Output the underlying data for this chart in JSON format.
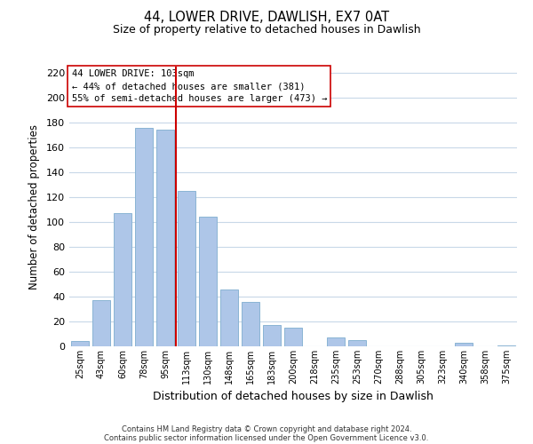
{
  "title": "44, LOWER DRIVE, DAWLISH, EX7 0AT",
  "subtitle": "Size of property relative to detached houses in Dawlish",
  "xlabel": "Distribution of detached houses by size in Dawlish",
  "ylabel": "Number of detached properties",
  "bar_labels": [
    "25sqm",
    "43sqm",
    "60sqm",
    "78sqm",
    "95sqm",
    "113sqm",
    "130sqm",
    "148sqm",
    "165sqm",
    "183sqm",
    "200sqm",
    "218sqm",
    "235sqm",
    "253sqm",
    "270sqm",
    "288sqm",
    "305sqm",
    "323sqm",
    "340sqm",
    "358sqm",
    "375sqm"
  ],
  "bar_values": [
    4,
    37,
    107,
    176,
    174,
    125,
    104,
    46,
    36,
    17,
    15,
    0,
    7,
    5,
    0,
    0,
    0,
    0,
    3,
    0,
    1
  ],
  "bar_color": "#aec6e8",
  "bar_edge_color": "#8ab4d4",
  "vline_color": "#cc0000",
  "vline_x_idx": 4.5,
  "ylim": [
    0,
    225
  ],
  "yticks": [
    0,
    20,
    40,
    60,
    80,
    100,
    120,
    140,
    160,
    180,
    200,
    220
  ],
  "annotation_title": "44 LOWER DRIVE: 103sqm",
  "annotation_line1": "← 44% of detached houses are smaller (381)",
  "annotation_line2": "55% of semi-detached houses are larger (473) →",
  "footer1": "Contains HM Land Registry data © Crown copyright and database right 2024.",
  "footer2": "Contains public sector information licensed under the Open Government Licence v3.0.",
  "background_color": "#ffffff",
  "grid_color": "#c8d8e8"
}
